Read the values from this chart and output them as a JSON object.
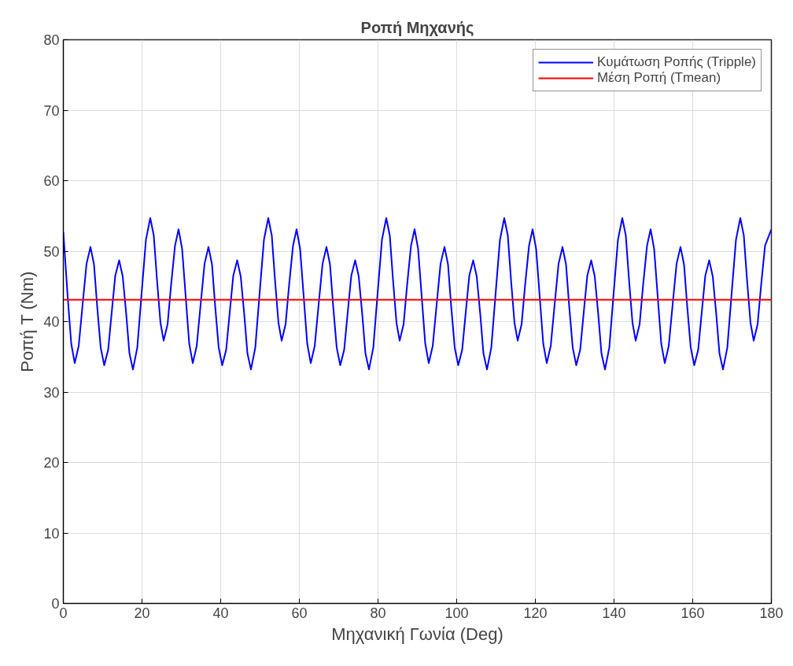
{
  "chart_data": {
    "type": "line",
    "title": "Ροπή Μηχανής",
    "xlabel": "Μηχανική Γωνία (Deg)",
    "ylabel": "Ροπή T (Nm)",
    "xlim": [
      0,
      180
    ],
    "ylim": [
      0,
      80
    ],
    "xticks": [
      0,
      20,
      40,
      60,
      80,
      100,
      120,
      140,
      160,
      180
    ],
    "yticks": [
      0,
      10,
      20,
      30,
      40,
      50,
      60,
      70,
      80
    ],
    "grid": true,
    "legend": "top right",
    "marker": "none",
    "line_style": "solid",
    "series": [
      {
        "name": "Κυμάτωση Ροπής (Tripple)",
        "color": "#0000ff",
        "x": [
          0,
          1.1,
          2.0,
          2.9,
          3.9,
          4.9,
          5.9,
          6.9,
          7.8,
          8.6,
          9.5,
          10.4,
          11.4,
          12.3,
          13.2,
          14.2,
          15.1,
          16.0,
          16.8,
          17.7,
          18.8,
          19.9,
          21.0,
          22.1,
          23.0,
          23.8,
          24.7,
          25.5,
          26.5,
          27.4,
          28.4,
          29.3,
          30.2,
          31.1,
          32.0,
          32.9,
          33.9,
          34.9,
          35.9,
          36.9,
          37.8,
          38.6,
          39.5,
          40.4,
          41.4,
          42.3,
          43.2,
          44.2,
          45.1,
          46.0,
          46.8,
          47.7,
          48.8,
          49.9,
          51.0,
          52.1,
          53.0,
          53.8,
          54.7,
          55.5,
          56.5,
          57.4,
          58.4,
          59.3,
          60.2,
          61.1,
          62.0,
          62.9,
          63.9,
          64.9,
          65.9,
          66.9,
          67.8,
          68.6,
          69.5,
          70.4,
          71.4,
          72.3,
          73.2,
          74.2,
          75.1,
          76.0,
          76.8,
          77.7,
          78.8,
          79.9,
          81.0,
          82.1,
          83.0,
          83.8,
          84.7,
          85.5,
          86.5,
          87.4,
          88.4,
          89.3,
          90.2,
          91.1,
          92.0,
          92.9,
          93.9,
          94.9,
          95.9,
          96.9,
          97.8,
          98.6,
          99.5,
          100.4,
          101.4,
          102.3,
          103.2,
          104.2,
          105.1,
          106.0,
          106.8,
          107.7,
          108.8,
          109.9,
          111.0,
          112.1,
          113.0,
          113.8,
          114.7,
          115.5,
          116.5,
          117.4,
          118.4,
          119.3,
          120.2,
          121.1,
          122.0,
          122.9,
          123.9,
          124.9,
          125.9,
          126.9,
          127.8,
          128.6,
          129.5,
          130.4,
          131.4,
          132.3,
          133.2,
          134.2,
          135.1,
          136.0,
          136.8,
          137.7,
          138.8,
          139.9,
          141.0,
          142.1,
          143.0,
          143.8,
          144.7,
          145.5,
          146.5,
          147.4,
          148.4,
          149.3,
          150.2,
          151.1,
          152.0,
          152.9,
          153.9,
          154.9,
          155.9,
          156.9,
          157.8,
          158.6,
          159.5,
          160.4,
          161.4,
          162.3,
          163.2,
          164.2,
          165.1,
          166.0,
          166.8,
          167.7,
          168.8,
          169.9,
          171.0,
          172.1,
          173.0,
          173.8,
          174.7,
          175.5,
          176.5,
          177.4,
          178.4,
          180
        ],
        "values": [
          52.7,
          43.6,
          36.9,
          34.1,
          36.5,
          42.4,
          48.2,
          50.6,
          48.1,
          42.2,
          36.3,
          33.8,
          36.0,
          41.3,
          46.5,
          48.7,
          46.4,
          41.0,
          35.5,
          33.2,
          36.3,
          44.0,
          51.6,
          54.7,
          52.2,
          46.0,
          39.8,
          37.3,
          39.6,
          45.2,
          50.8,
          53.1,
          50.3,
          43.6,
          36.9,
          34.1,
          36.5,
          42.4,
          48.2,
          50.6,
          48.1,
          42.2,
          36.3,
          33.8,
          36.0,
          41.3,
          46.5,
          48.7,
          46.4,
          41.0,
          35.5,
          33.2,
          36.3,
          44.0,
          51.6,
          54.7,
          52.2,
          46.0,
          39.8,
          37.3,
          39.6,
          45.2,
          50.8,
          53.1,
          50.3,
          43.6,
          36.9,
          34.1,
          36.5,
          42.4,
          48.2,
          50.6,
          48.1,
          42.2,
          36.3,
          33.8,
          36.0,
          41.3,
          46.5,
          48.7,
          46.4,
          41.0,
          35.5,
          33.2,
          36.3,
          44.0,
          51.6,
          54.7,
          52.2,
          46.0,
          39.8,
          37.3,
          39.6,
          45.2,
          50.8,
          53.1,
          50.3,
          43.6,
          36.9,
          34.1,
          36.5,
          42.4,
          48.2,
          50.6,
          48.1,
          42.2,
          36.3,
          33.8,
          36.0,
          41.3,
          46.5,
          48.7,
          46.4,
          41.0,
          35.5,
          33.2,
          36.3,
          44.0,
          51.6,
          54.7,
          52.2,
          46.0,
          39.8,
          37.3,
          39.6,
          45.2,
          50.8,
          53.1,
          50.3,
          43.6,
          36.9,
          34.1,
          36.5,
          42.4,
          48.2,
          50.6,
          48.1,
          42.2,
          36.3,
          33.8,
          36.0,
          41.3,
          46.5,
          48.7,
          46.4,
          41.0,
          35.5,
          33.2,
          36.3,
          44.0,
          51.6,
          54.7,
          52.2,
          46.0,
          39.8,
          37.3,
          39.6,
          45.2,
          50.8,
          53.1,
          50.3,
          43.6,
          36.9,
          34.1,
          36.5,
          42.4,
          48.2,
          50.6,
          48.1,
          42.2,
          36.3,
          33.8,
          36.0,
          41.3,
          46.5,
          48.7,
          46.4,
          41.0,
          35.5,
          33.2,
          36.3,
          44.0,
          51.6,
          54.7,
          52.2,
          46.0,
          39.8,
          37.3,
          39.6,
          45.2,
          50.8,
          53.1
        ]
      },
      {
        "name": "Μέση Ροπή (Tmean)",
        "color": "#ff0000",
        "x": [
          0,
          180
        ],
        "values": [
          43.1,
          43.1
        ]
      }
    ]
  }
}
